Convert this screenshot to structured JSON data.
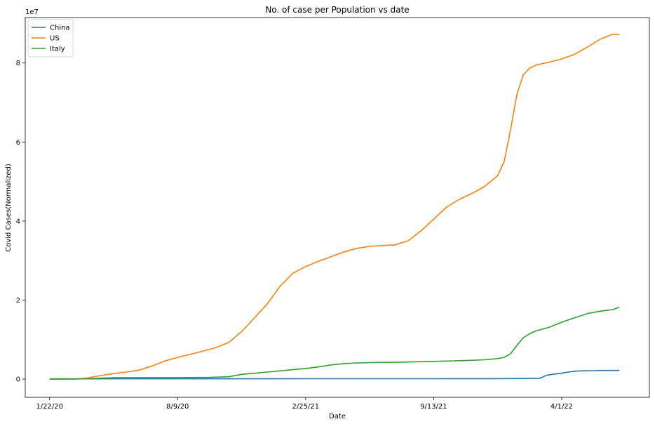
{
  "chart_data": {
    "type": "line",
    "title": "No. of case per Population vs date",
    "xlabel": "Date",
    "ylabel": "Covid Cases(Normalized)",
    "y_offset_text": "1e7",
    "x_tick_labels": [
      "1/22/20",
      "8/9/20",
      "2/25/21",
      "9/13/21",
      "4/1/22"
    ],
    "x_tick_values": [
      0,
      200,
      400,
      600,
      800
    ],
    "y_tick_values": [
      0,
      2,
      4,
      6,
      8
    ],
    "y_unit_scale": 10000000,
    "xlim": [
      -38,
      937
    ],
    "ylim": [
      -0.46,
      9.15
    ],
    "grid": false,
    "legend_position": "top-left",
    "series": [
      {
        "name": "China",
        "color": "#1f77b4",
        "x": [
          0,
          100,
          200,
          300,
          400,
          500,
          600,
          700,
          765,
          770,
          775,
          780,
          790,
          800,
          810,
          820,
          830,
          850,
          870,
          890
        ],
        "y": [
          0.008,
          0.009,
          0.009,
          0.009,
          0.01,
          0.01,
          0.011,
          0.012,
          0.02,
          0.05,
          0.09,
          0.11,
          0.13,
          0.15,
          0.18,
          0.2,
          0.21,
          0.215,
          0.22,
          0.22
        ]
      },
      {
        "name": "US",
        "color": "#ff7f0e",
        "x": [
          0,
          40,
          60,
          80,
          100,
          120,
          140,
          160,
          180,
          200,
          220,
          240,
          260,
          280,
          300,
          320,
          340,
          360,
          380,
          400,
          420,
          440,
          460,
          480,
          500,
          520,
          540,
          560,
          580,
          600,
          620,
          640,
          660,
          680,
          700,
          710,
          720,
          730,
          740,
          750,
          760,
          780,
          800,
          820,
          840,
          860,
          880,
          890
        ],
        "y": [
          0.0,
          0.003,
          0.03,
          0.09,
          0.14,
          0.18,
          0.23,
          0.33,
          0.46,
          0.55,
          0.63,
          0.71,
          0.8,
          0.93,
          1.2,
          1.55,
          1.9,
          2.35,
          2.68,
          2.85,
          2.98,
          3.1,
          3.22,
          3.31,
          3.36,
          3.38,
          3.4,
          3.5,
          3.75,
          4.05,
          4.35,
          4.55,
          4.7,
          4.88,
          5.15,
          5.5,
          6.3,
          7.2,
          7.7,
          7.87,
          7.95,
          8.02,
          8.1,
          8.22,
          8.4,
          8.6,
          8.73,
          8.72
        ]
      },
      {
        "name": "Italy",
        "color": "#2ca02c",
        "x": [
          0,
          40,
          60,
          80,
          100,
          200,
          250,
          280,
          300,
          320,
          340,
          360,
          380,
          400,
          420,
          440,
          460,
          480,
          500,
          550,
          600,
          650,
          680,
          700,
          710,
          720,
          730,
          740,
          750,
          760,
          780,
          800,
          820,
          840,
          860,
          880,
          890
        ],
        "y": [
          0.0,
          0.002,
          0.01,
          0.025,
          0.035,
          0.04,
          0.045,
          0.06,
          0.12,
          0.15,
          0.18,
          0.21,
          0.24,
          0.27,
          0.31,
          0.36,
          0.39,
          0.41,
          0.42,
          0.43,
          0.45,
          0.47,
          0.49,
          0.52,
          0.55,
          0.64,
          0.85,
          1.05,
          1.15,
          1.22,
          1.31,
          1.44,
          1.55,
          1.66,
          1.72,
          1.76,
          1.82
        ]
      }
    ]
  }
}
